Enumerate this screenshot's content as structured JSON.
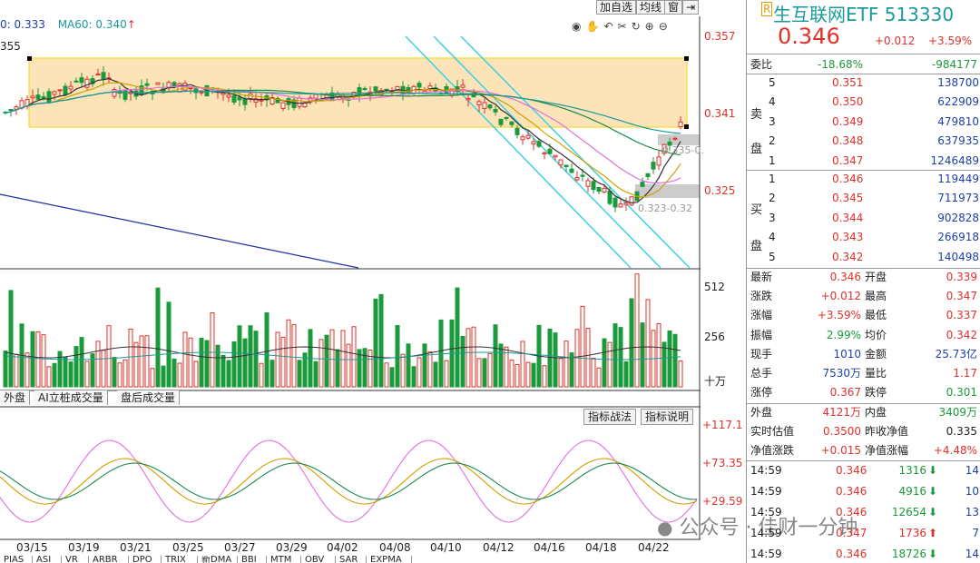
{
  "header": {
    "ma_prefix": "0: 0.333",
    "ma60": "MA60: 0.340",
    "ma60_arrow": "↑",
    "high_marker": "355",
    "toolbar": [
      "加自选",
      "均线",
      "窗"
    ],
    "price_axis": [
      "0.357",
      "0.341",
      "0.325"
    ],
    "annotation_upper": "0.335-0.",
    "annotation_lower": "0.323-0.32"
  },
  "volume_axis": [
    "512",
    "256",
    "十万"
  ],
  "tabs": [
    "外盘",
    "AI立桩成交量",
    "盘后成交量"
  ],
  "indicator_buttons": [
    "指标战法",
    "指标说明"
  ],
  "indicator_axis": [
    "+117.1",
    "+73.35",
    "+29.59"
  ],
  "x_axis": [
    "03/15",
    "03/19",
    "03/21",
    "03/25",
    "03/27",
    "03/29",
    "04/02",
    "04/08",
    "04/10",
    "04/12",
    "04/16",
    "04/18",
    "04/22"
  ],
  "bottom_tabs": [
    "PIAS",
    "ASI",
    "VR",
    "ARBR",
    "DPO",
    "TRIX",
    "新DMA",
    "BBI",
    "MTM",
    "OBV",
    "SAR",
    "EXPMA"
  ],
  "watermark": "公众号 · 佳财一分钟",
  "stock": {
    "name": "生互联网ETF 513330",
    "name_badge": "R",
    "price": "0.346",
    "change": "+0.012",
    "change_pct": "+3.59%"
  },
  "wei": {
    "label": "委比",
    "ratio": "-18.68%",
    "diff": "-984177"
  },
  "sell_label": [
    "卖",
    "盘"
  ],
  "buy_label": [
    "买",
    "盘"
  ],
  "sell": [
    {
      "level": "5",
      "price": "0.351",
      "vol": "138700"
    },
    {
      "level": "4",
      "price": "0.350",
      "vol": "622909"
    },
    {
      "level": "3",
      "price": "0.349",
      "vol": "479810"
    },
    {
      "level": "2",
      "price": "0.348",
      "vol": "637935"
    },
    {
      "level": "1",
      "price": "0.347",
      "vol": "1246489"
    }
  ],
  "buy": [
    {
      "level": "1",
      "price": "0.346",
      "vol": "119449"
    },
    {
      "level": "2",
      "price": "0.345",
      "vol": "711973"
    },
    {
      "level": "3",
      "price": "0.344",
      "vol": "902828"
    },
    {
      "level": "4",
      "price": "0.343",
      "vol": "266918"
    },
    {
      "level": "5",
      "price": "0.342",
      "vol": "140498"
    }
  ],
  "stats": [
    {
      "l1": "最新",
      "v1": "0.346",
      "c1": "red",
      "l2": "开盘",
      "v2": "0.339",
      "c2": "red"
    },
    {
      "l1": "涨跌",
      "v1": "+0.012",
      "c1": "red",
      "l2": "最高",
      "v2": "0.347",
      "c2": "red"
    },
    {
      "l1": "涨幅",
      "v1": "+3.59%",
      "c1": "red",
      "l2": "最低",
      "v2": "0.337",
      "c2": "red"
    },
    {
      "l1": "振幅",
      "v1": "2.99%",
      "c1": "green",
      "l2": "均价",
      "v2": "0.342",
      "c2": "red"
    },
    {
      "l1": "现手",
      "v1": "1010",
      "c1": "blue",
      "l2": "金额",
      "v2": "25.73亿",
      "c2": "blue"
    },
    {
      "l1": "总手",
      "v1": "7530万",
      "c1": "blue",
      "l2": "量比",
      "v2": "1.17",
      "c2": "red"
    },
    {
      "l1": "涨停",
      "v1": "0.367",
      "c1": "red",
      "l2": "跌停",
      "v2": "0.301",
      "c2": "green"
    }
  ],
  "stats2": [
    {
      "l1": "外盘",
      "v1": "4121万",
      "c1": "red",
      "l2": "内盘",
      "v2": "3409万",
      "c2": "green"
    },
    {
      "l1": "实时估值",
      "v1": "0.3500",
      "c1": "red",
      "l2": "昨收净值",
      "v2": "0.335",
      "c2": "dark"
    },
    {
      "l1": "净值涨跌",
      "v1": "+0.015",
      "c1": "red",
      "l2": "净值涨幅",
      "v2": "+4.48%",
      "c2": "red"
    }
  ],
  "ticks": [
    {
      "time": "14:59",
      "price": "0.346",
      "vol": "1316",
      "dir": "down",
      "n": "14"
    },
    {
      "time": "14:59",
      "price": "0.346",
      "vol": "4916",
      "dir": "down",
      "n": "10"
    },
    {
      "time": "14:59",
      "price": "0.346",
      "vol": "12654",
      "dir": "down",
      "n": "13"
    },
    {
      "time": "14:59",
      "price": "0.347",
      "vol": "1736",
      "dir": "up",
      "n": "7"
    },
    {
      "time": "14:59",
      "price": "0.346",
      "vol": "18726",
      "dir": "down",
      "n": "14"
    }
  ],
  "colors": {
    "up": "#e0302a",
    "down": "#1a9a3a",
    "zone": "#fde3b8",
    "channel": "#40d0e0"
  }
}
